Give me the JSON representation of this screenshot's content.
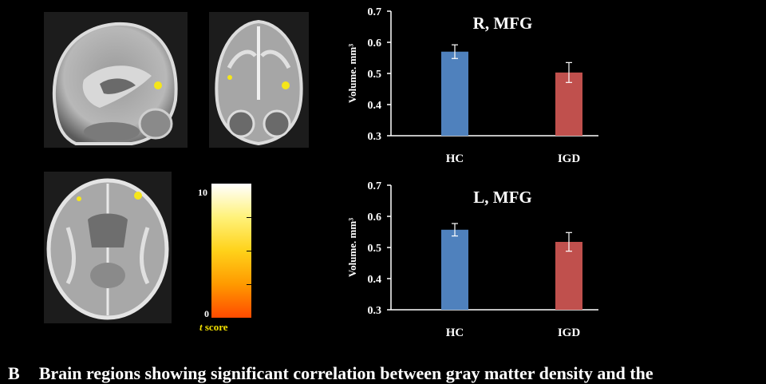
{
  "colorbar": {
    "max_label": "10",
    "min_label": "0",
    "label_italic": "t",
    "label_rest": " score",
    "gradient_colors": [
      "#ffffff",
      "#fff27a",
      "#ffd21a",
      "#ff9a00",
      "#ff4a00"
    ]
  },
  "caption": {
    "panel_letter": "B",
    "text": "Brain regions showing significant correlation between gray matter density and the"
  },
  "colors": {
    "hc_bar": "#4f81bd",
    "igd_bar": "#c0504d",
    "highlight": "#f5e61a"
  },
  "chart_data": [
    {
      "type": "bar",
      "title": "R, MFG",
      "ylabel": "Volume. mm³",
      "categories": [
        "HC",
        "IGD"
      ],
      "values": [
        0.57,
        0.503
      ],
      "errors": [
        0.022,
        0.032
      ],
      "ylim": [
        0.3,
        0.7
      ],
      "yticks": [
        "0.3",
        "0.4",
        "0.5",
        "0.6",
        "0.7"
      ],
      "grid": false
    },
    {
      "type": "bar",
      "title": "L, MFG",
      "ylabel": "Volume. mm³",
      "categories": [
        "HC",
        "IGD"
      ],
      "values": [
        0.557,
        0.518
      ],
      "errors": [
        0.02,
        0.03
      ],
      "ylim": [
        0.3,
        0.7
      ],
      "yticks": [
        "0.3",
        "0.4",
        "0.5",
        "0.6",
        "0.7"
      ],
      "grid": false
    }
  ]
}
